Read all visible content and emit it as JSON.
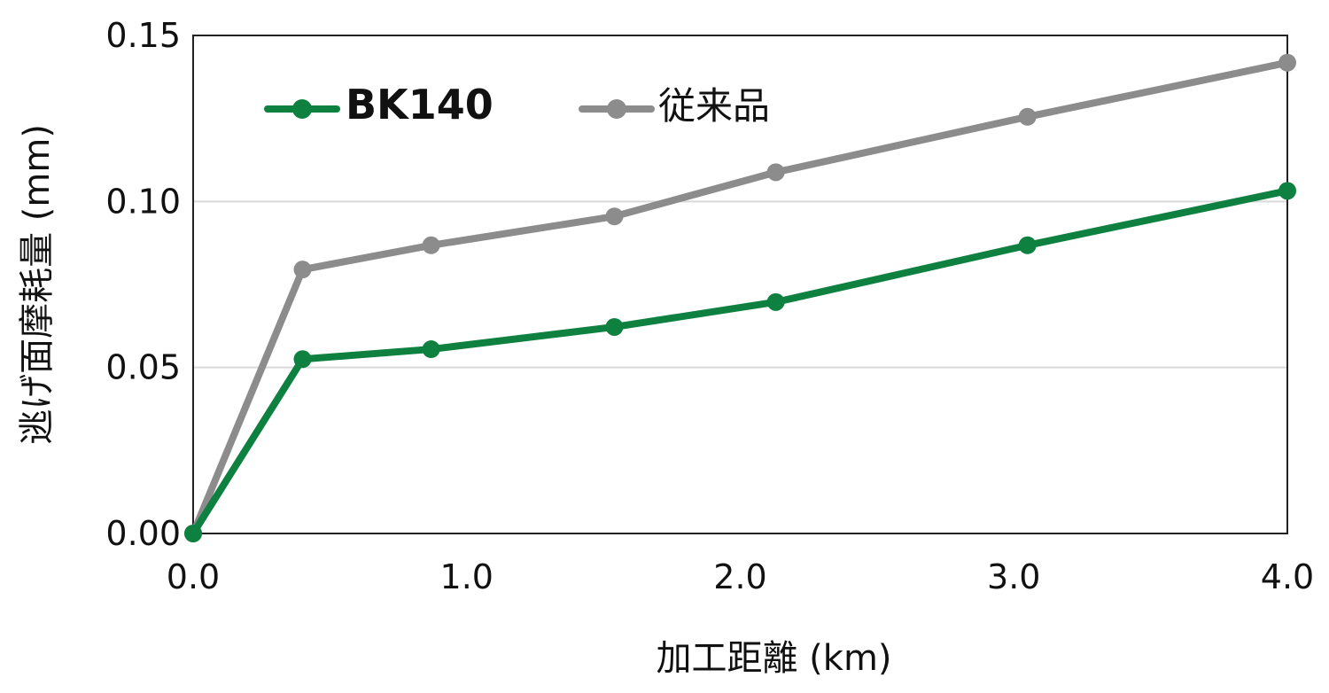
{
  "chart_data": {
    "type": "line",
    "title": "",
    "xlabel": "加工距離 (km)",
    "ylabel": "逃げ面摩耗量 (mm)",
    "xlim": [
      0,
      4.0
    ],
    "ylim": [
      0,
      0.15
    ],
    "xticks": [
      0,
      1.0,
      2.0,
      3.0,
      4.0
    ],
    "xtick_labels": [
      "0.0",
      "1.0",
      "2.0",
      "3.0",
      "4.0"
    ],
    "yticks": [
      0,
      0.05,
      0.1,
      0.15
    ],
    "ytick_labels": [
      "0.00",
      "0.05",
      "0.10",
      "0.15"
    ],
    "grid": "horizontal",
    "legend_position": "top-left",
    "series": [
      {
        "name": "BK140",
        "color": "#0e8040",
        "x": [
          0,
          0.4,
          0.87,
          1.54,
          2.13,
          3.05,
          4.0
        ],
        "y": [
          0,
          0.0525,
          0.0555,
          0.0622,
          0.0697,
          0.0868,
          0.1032
        ]
      },
      {
        "name": "従来品",
        "color": "#8c8c8c",
        "x": [
          0,
          0.4,
          0.87,
          1.54,
          2.13,
          3.05,
          4.0
        ],
        "y": [
          0,
          0.0795,
          0.0868,
          0.0955,
          0.1088,
          0.1255,
          0.1418
        ]
      }
    ]
  }
}
